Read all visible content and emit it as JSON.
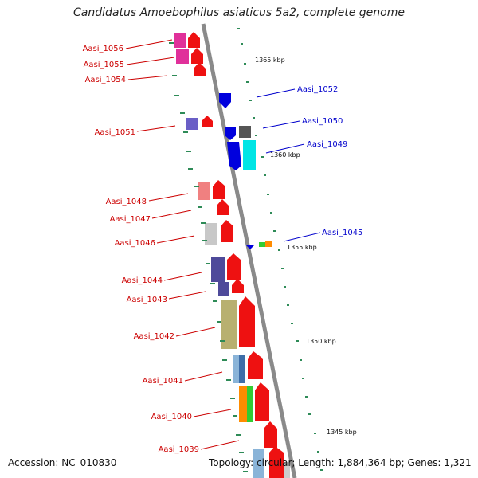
{
  "title": "Candidatus Amoebophilus asiaticus 5a2, complete genome",
  "footer": {
    "accession": "Accession: NC_010830",
    "topology": "Topology: circular; Length: 1,884,364 bp; Genes: 1,321"
  },
  "colors": {
    "left_label": "#cc0000",
    "right_label": "#0000cc",
    "backbone": "#8a8a8a",
    "tick": "#2e8b57"
  },
  "kbp_markers": [
    "1365 kbp",
    "1360 kbp",
    "1355 kbp",
    "1350 kbp",
    "1345 kbp"
  ],
  "left_genes": [
    "Aasi_1056",
    "Aasi_1055",
    "Aasi_1054",
    "Aasi_1051",
    "Aasi_1048",
    "Aasi_1047",
    "Aasi_1046",
    "Aasi_1044",
    "Aasi_1043",
    "Aasi_1042",
    "Aasi_1041",
    "Aasi_1040",
    "Aasi_1039"
  ],
  "right_genes": [
    "Aasi_1052",
    "Aasi_1050",
    "Aasi_1049",
    "Aasi_1045"
  ]
}
